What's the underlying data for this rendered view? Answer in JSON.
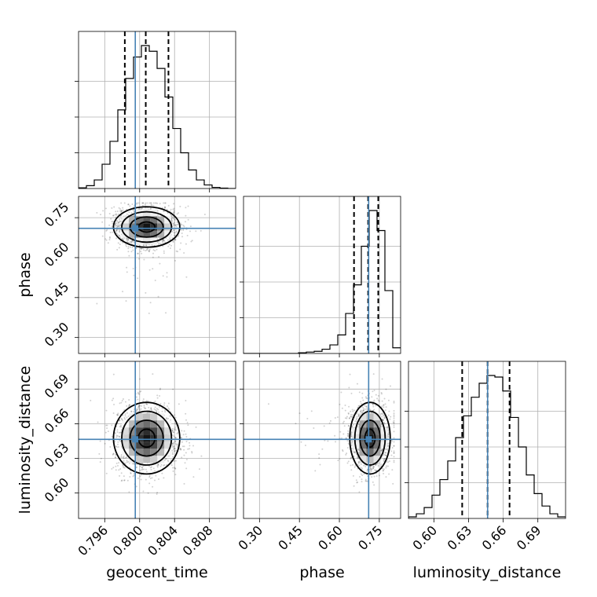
{
  "chart_data": {
    "type": "corner",
    "parameters": [
      "geocent_time",
      "phase",
      "luminosity_distance"
    ],
    "truth_color": "#4682b4",
    "truths": {
      "geocent_time": 0.7995,
      "phase": 0.71,
      "luminosity_distance": 0.6465
    },
    "axes": {
      "geocent_time": {
        "range": [
          0.793,
          0.811
        ],
        "ticks": [
          0.796,
          0.8,
          0.804,
          0.808
        ],
        "tick_labels": [
          "0.796",
          "0.800",
          "0.804",
          "0.808"
        ]
      },
      "phase": {
        "range": [
          0.24,
          0.83
        ],
        "ticks": [
          0.3,
          0.45,
          0.6,
          0.75
        ],
        "tick_labels": [
          "0.30",
          "0.45",
          "0.60",
          "0.75"
        ]
      },
      "luminosity_distance": {
        "range": [
          0.578,
          0.714
        ],
        "ticks": [
          0.6,
          0.63,
          0.66,
          0.69
        ],
        "tick_labels": [
          "0.60",
          "0.63",
          "0.66",
          "0.69"
        ]
      }
    },
    "histograms": {
      "geocent_time": {
        "bin_edges": [
          0.793,
          0.7939,
          0.7948,
          0.7957,
          0.7966,
          0.7975,
          0.7984,
          0.7993,
          0.8002,
          0.8011,
          0.802,
          0.8029,
          0.8038,
          0.8047,
          0.8056,
          0.8065,
          0.8074,
          0.8083,
          0.8092,
          0.8101,
          0.811
        ],
        "counts": [
          0.005,
          0.02,
          0.06,
          0.17,
          0.33,
          0.55,
          0.77,
          0.92,
          1.0,
          0.96,
          0.84,
          0.64,
          0.42,
          0.25,
          0.13,
          0.06,
          0.025,
          0.008,
          0.003,
          0.0
        ],
        "quantiles": [
          0.7983,
          0.8007,
          0.8033
        ]
      },
      "phase": {
        "bin_edges": [
          0.24,
          0.2695,
          0.299,
          0.3285,
          0.358,
          0.3875,
          0.417,
          0.4465,
          0.476,
          0.5055,
          0.535,
          0.5645,
          0.594,
          0.6235,
          0.653,
          0.6825,
          0.712,
          0.7415,
          0.771,
          0.8005,
          0.83
        ],
        "counts": [
          0.0,
          0.0,
          0.0,
          0.0,
          0.0,
          0.0,
          0.0,
          0.005,
          0.01,
          0.015,
          0.03,
          0.06,
          0.13,
          0.28,
          0.48,
          0.75,
          1.0,
          0.86,
          0.44,
          0.04
        ],
        "quantiles": [
          0.655,
          0.708,
          0.746
        ]
      },
      "luminosity_distance": {
        "bin_edges": [
          0.578,
          0.5848,
          0.5916,
          0.5984,
          0.6052,
          0.612,
          0.6188,
          0.6256,
          0.6324,
          0.6392,
          0.646,
          0.6528,
          0.6596,
          0.6664,
          0.6732,
          0.68,
          0.6868,
          0.6936,
          0.7004,
          0.7072,
          0.714
        ],
        "counts": [
          0.01,
          0.03,
          0.07,
          0.15,
          0.25,
          0.37,
          0.52,
          0.66,
          0.78,
          0.87,
          0.92,
          0.91,
          0.82,
          0.65,
          0.46,
          0.28,
          0.16,
          0.08,
          0.03,
          0.01
        ],
        "quantiles": [
          0.6245,
          0.6465,
          0.6655
        ]
      }
    },
    "posterior_2d": {
      "means": {
        "geocent_time": 0.8008,
        "phase": 0.715,
        "luminosity_distance": 0.6475
      },
      "sigmas": {
        "geocent_time": 0.0019,
        "phase": 0.038,
        "luminosity_distance": 0.0155
      }
    }
  }
}
